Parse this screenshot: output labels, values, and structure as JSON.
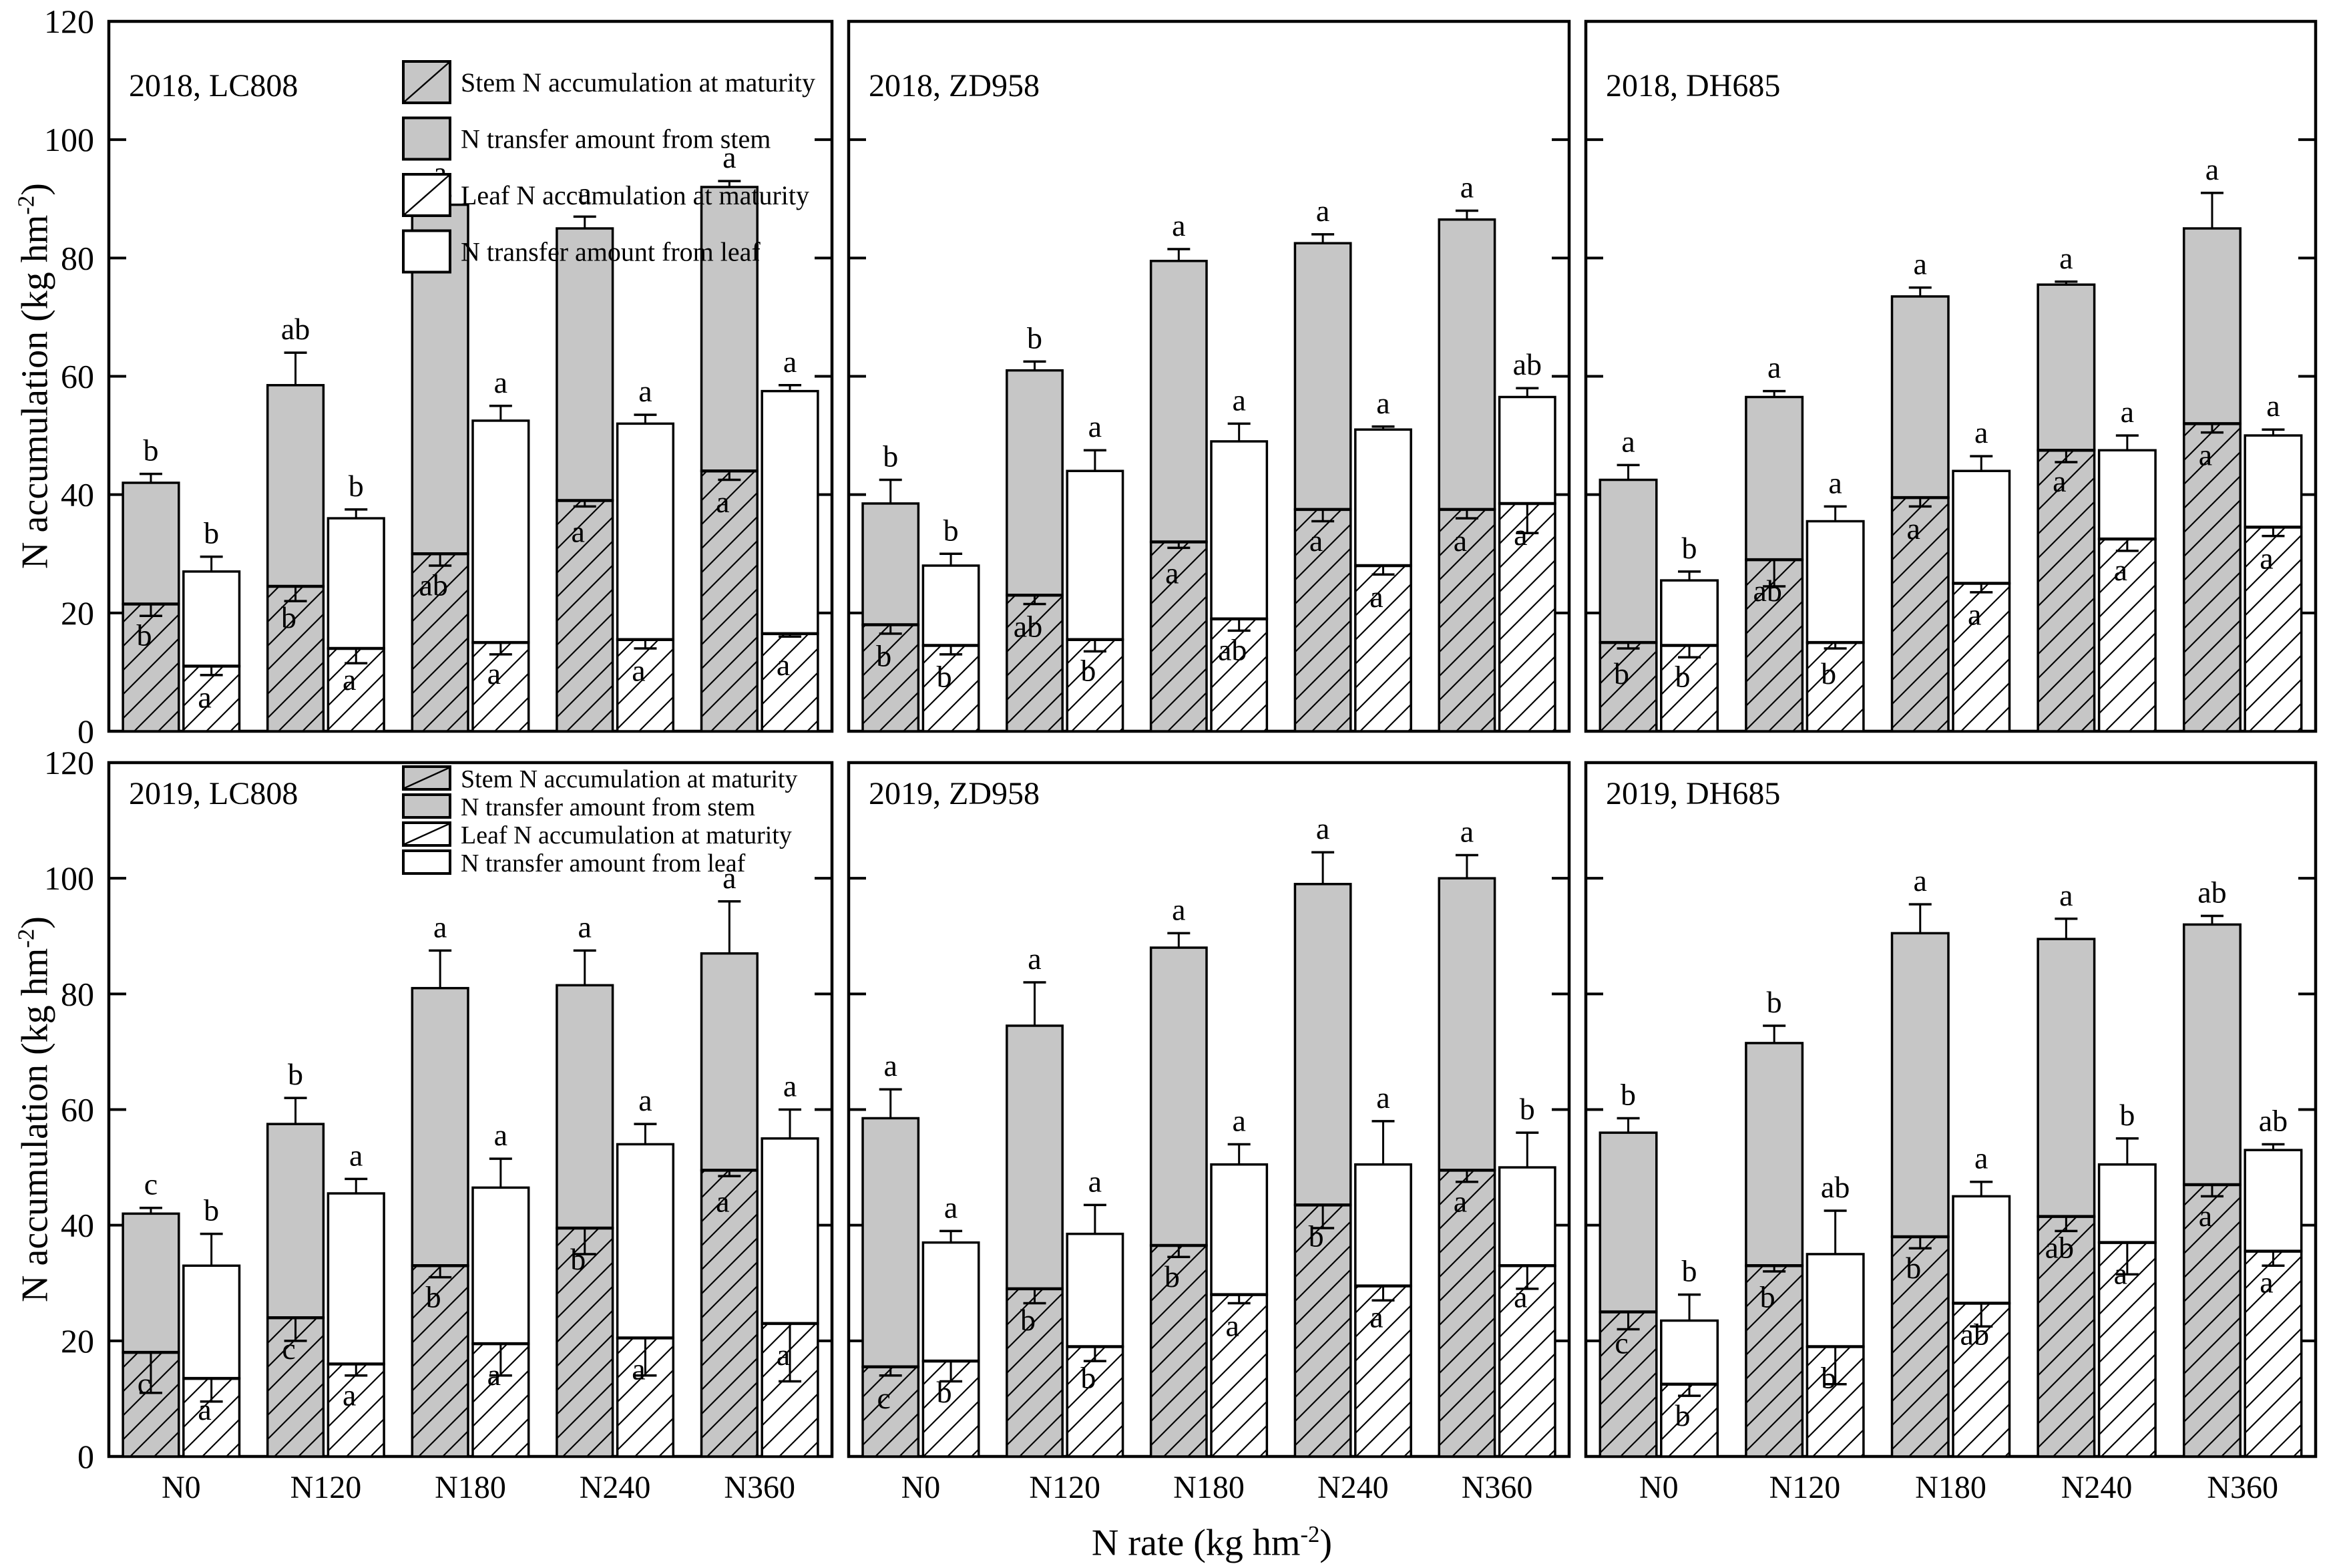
{
  "figure": {
    "x_axis_title": {
      "pre": "N rate (kg hm",
      "sup": "-2",
      "post": ")"
    },
    "y_axis_title": {
      "pre": "N accumulation (kg hm",
      "sup": "-2",
      "post": ")"
    }
  },
  "legend": [
    {
      "label": "Stem N accumulation at maturity",
      "fill": "gray",
      "hatched": true
    },
    {
      "label": "N transfer amount from stem",
      "fill": "gray",
      "hatched": false
    },
    {
      "label": "Leaf N accumulation at maturity",
      "fill": "white",
      "hatched": true
    },
    {
      "label": "N transfer amount from leaf",
      "fill": "white",
      "hatched": false
    }
  ],
  "chart_data": {
    "type": "bar",
    "stacked": true,
    "ylim": [
      0,
      120
    ],
    "yticks": [
      0,
      20,
      40,
      60,
      80,
      100,
      120
    ],
    "categories": [
      "N0",
      "N120",
      "N180",
      "N240",
      "N360"
    ],
    "colors": {
      "bar_gray": "#c6c6c6",
      "bar_white": "#ffffff",
      "outline": "#000000"
    },
    "layout_hints": {
      "grid": false,
      "panel_grid": "2 rows x 3 cols",
      "legend_position": "inside top of left panels",
      "error_bars": "up from segment total, down from maturity boundary"
    },
    "panels": [
      {
        "label": "2018, LC808",
        "show_legend": true,
        "groups": [
          {
            "rate": "N0",
            "stem": {
              "maturity": 21.5,
              "total": 42,
              "err_total": 1.5,
              "err_maturity": 2,
              "letter_total": "b",
              "letter_maturity": "b"
            },
            "leaf": {
              "maturity": 11,
              "total": 27,
              "err_total": 2.5,
              "err_maturity": 1.5,
              "letter_total": "b",
              "letter_maturity": "a"
            }
          },
          {
            "rate": "N120",
            "stem": {
              "maturity": 24.5,
              "total": 58.5,
              "err_total": 5.5,
              "err_maturity": 2.5,
              "letter_total": "ab",
              "letter_maturity": "b"
            },
            "leaf": {
              "maturity": 14,
              "total": 36,
              "err_total": 1.5,
              "err_maturity": 2.5,
              "letter_total": "b",
              "letter_maturity": "a"
            }
          },
          {
            "rate": "N180",
            "stem": {
              "maturity": 30,
              "total": 89,
              "err_total": 1.5,
              "err_maturity": 2,
              "letter_total": "a",
              "letter_maturity": "ab"
            },
            "leaf": {
              "maturity": 15,
              "total": 52.5,
              "err_total": 2.5,
              "err_maturity": 2,
              "letter_total": "a",
              "letter_maturity": "a"
            }
          },
          {
            "rate": "N240",
            "stem": {
              "maturity": 39,
              "total": 85,
              "err_total": 2,
              "err_maturity": 1,
              "letter_total": "a",
              "letter_maturity": "a"
            },
            "leaf": {
              "maturity": 15.5,
              "total": 52,
              "err_total": 1.5,
              "err_maturity": 1.5,
              "letter_total": "a",
              "letter_maturity": "a"
            }
          },
          {
            "rate": "N360",
            "stem": {
              "maturity": 44,
              "total": 92,
              "err_total": 1,
              "err_maturity": 1.5,
              "letter_total": "a",
              "letter_maturity": "a"
            },
            "leaf": {
              "maturity": 16.5,
              "total": 57.5,
              "err_total": 1,
              "err_maturity": 0.5,
              "letter_total": "a",
              "letter_maturity": "a"
            }
          }
        ]
      },
      {
        "label": "2018, ZD958",
        "show_legend": false,
        "groups": [
          {
            "rate": "N0",
            "stem": {
              "maturity": 18,
              "total": 38.5,
              "err_total": 4,
              "err_maturity": 1.5,
              "letter_total": "b",
              "letter_maturity": "b"
            },
            "leaf": {
              "maturity": 14.5,
              "total": 28,
              "err_total": 2,
              "err_maturity": 1.5,
              "letter_total": "b",
              "letter_maturity": "b"
            }
          },
          {
            "rate": "N120",
            "stem": {
              "maturity": 23,
              "total": 61,
              "err_total": 1.5,
              "err_maturity": 1.5,
              "letter_total": "b",
              "letter_maturity": "ab"
            },
            "leaf": {
              "maturity": 15.5,
              "total": 44,
              "err_total": 3.5,
              "err_maturity": 2,
              "letter_total": "a",
              "letter_maturity": "b"
            }
          },
          {
            "rate": "N180",
            "stem": {
              "maturity": 32,
              "total": 79.5,
              "err_total": 2,
              "err_maturity": 1,
              "letter_total": "a",
              "letter_maturity": "a"
            },
            "leaf": {
              "maturity": 19,
              "total": 49,
              "err_total": 3,
              "err_maturity": 2,
              "letter_total": "a",
              "letter_maturity": "ab"
            }
          },
          {
            "rate": "N240",
            "stem": {
              "maturity": 37.5,
              "total": 82.5,
              "err_total": 1.5,
              "err_maturity": 2,
              "letter_total": "a",
              "letter_maturity": "a"
            },
            "leaf": {
              "maturity": 28,
              "total": 51,
              "err_total": 0.5,
              "err_maturity": 1.5,
              "letter_total": "a",
              "letter_maturity": "a"
            }
          },
          {
            "rate": "N360",
            "stem": {
              "maturity": 37.5,
              "total": 86.5,
              "err_total": 1.5,
              "err_maturity": 1.5,
              "letter_total": "a",
              "letter_maturity": "a"
            },
            "leaf": {
              "maturity": 38.5,
              "total": 56.5,
              "err_total": 1.5,
              "err_maturity": 5,
              "letter_total": "ab",
              "letter_maturity": "a"
            }
          }
        ]
      },
      {
        "label": "2018, DH685",
        "show_legend": false,
        "groups": [
          {
            "rate": "N0",
            "stem": {
              "maturity": 15,
              "total": 42.5,
              "err_total": 2.5,
              "err_maturity": 1,
              "letter_total": "a",
              "letter_maturity": "b"
            },
            "leaf": {
              "maturity": 14.5,
              "total": 25.5,
              "err_total": 1.5,
              "err_maturity": 2,
              "letter_total": "b",
              "letter_maturity": "b"
            }
          },
          {
            "rate": "N120",
            "stem": {
              "maturity": 29,
              "total": 56.5,
              "err_total": 1,
              "err_maturity": 4.5,
              "letter_total": "a",
              "letter_maturity": "ab"
            },
            "leaf": {
              "maturity": 15,
              "total": 35.5,
              "err_total": 2.5,
              "err_maturity": 1,
              "letter_total": "a",
              "letter_maturity": "b"
            }
          },
          {
            "rate": "N180",
            "stem": {
              "maturity": 39.5,
              "total": 73.5,
              "err_total": 1.5,
              "err_maturity": 1.5,
              "letter_total": "a",
              "letter_maturity": "a"
            },
            "leaf": {
              "maturity": 25,
              "total": 44,
              "err_total": 2.5,
              "err_maturity": 1.5,
              "letter_total": "a",
              "letter_maturity": "a"
            }
          },
          {
            "rate": "N240",
            "stem": {
              "maturity": 47.5,
              "total": 75.5,
              "err_total": 0.5,
              "err_maturity": 2,
              "letter_total": "a",
              "letter_maturity": "a"
            },
            "leaf": {
              "maturity": 32.5,
              "total": 47.5,
              "err_total": 2.5,
              "err_maturity": 2,
              "letter_total": "a",
              "letter_maturity": "a"
            }
          },
          {
            "rate": "N360",
            "stem": {
              "maturity": 52,
              "total": 85,
              "err_total": 6,
              "err_maturity": 1.5,
              "letter_total": "a",
              "letter_maturity": "a"
            },
            "leaf": {
              "maturity": 34.5,
              "total": 50,
              "err_total": 1,
              "err_maturity": 1.5,
              "letter_total": "a",
              "letter_maturity": "a"
            }
          }
        ]
      },
      {
        "label": "2019, LC808",
        "show_legend": true,
        "groups": [
          {
            "rate": "N0",
            "stem": {
              "maturity": 18,
              "total": 42,
              "err_total": 1,
              "err_maturity": 7,
              "letter_total": "c",
              "letter_maturity": "c"
            },
            "leaf": {
              "maturity": 13.5,
              "total": 33,
              "err_total": 5.5,
              "err_maturity": 4,
              "letter_total": "b",
              "letter_maturity": "a"
            }
          },
          {
            "rate": "N120",
            "stem": {
              "maturity": 24,
              "total": 57.5,
              "err_total": 4.5,
              "err_maturity": 4,
              "letter_total": "b",
              "letter_maturity": "c"
            },
            "leaf": {
              "maturity": 16,
              "total": 45.5,
              "err_total": 2.5,
              "err_maturity": 2,
              "letter_total": "a",
              "letter_maturity": "a"
            }
          },
          {
            "rate": "N180",
            "stem": {
              "maturity": 33,
              "total": 81,
              "err_total": 6.5,
              "err_maturity": 2,
              "letter_total": "a",
              "letter_maturity": "b"
            },
            "leaf": {
              "maturity": 19.5,
              "total": 46.5,
              "err_total": 5,
              "err_maturity": 5.5,
              "letter_total": "a",
              "letter_maturity": "a"
            }
          },
          {
            "rate": "N240",
            "stem": {
              "maturity": 39.5,
              "total": 81.5,
              "err_total": 6,
              "err_maturity": 4.5,
              "letter_total": "a",
              "letter_maturity": "b"
            },
            "leaf": {
              "maturity": 20.5,
              "total": 54,
              "err_total": 3.5,
              "err_maturity": 6.5,
              "letter_total": "a",
              "letter_maturity": "a"
            }
          },
          {
            "rate": "N360",
            "stem": {
              "maturity": 49.5,
              "total": 87,
              "err_total": 9,
              "err_maturity": 1,
              "letter_total": "a",
              "letter_maturity": "a"
            },
            "leaf": {
              "maturity": 23,
              "total": 55,
              "err_total": 5,
              "err_maturity": 10,
              "letter_total": "a",
              "letter_maturity": "a"
            }
          }
        ]
      },
      {
        "label": "2019, ZD958",
        "show_legend": false,
        "groups": [
          {
            "rate": "N0",
            "stem": {
              "maturity": 15.5,
              "total": 58.5,
              "err_total": 5,
              "err_maturity": 1.5,
              "letter_total": "a",
              "letter_maturity": "c"
            },
            "leaf": {
              "maturity": 16.5,
              "total": 37,
              "err_total": 2,
              "err_maturity": 3.5,
              "letter_total": "a",
              "letter_maturity": "b"
            }
          },
          {
            "rate": "N120",
            "stem": {
              "maturity": 29,
              "total": 74.5,
              "err_total": 7.5,
              "err_maturity": 2.5,
              "letter_total": "a",
              "letter_maturity": "b"
            },
            "leaf": {
              "maturity": 19,
              "total": 38.5,
              "err_total": 5,
              "err_maturity": 2.5,
              "letter_total": "a",
              "letter_maturity": "b"
            }
          },
          {
            "rate": "N180",
            "stem": {
              "maturity": 36.5,
              "total": 88,
              "err_total": 2.5,
              "err_maturity": 2,
              "letter_total": "a",
              "letter_maturity": "b"
            },
            "leaf": {
              "maturity": 28,
              "total": 50.5,
              "err_total": 3.5,
              "err_maturity": 1.5,
              "letter_total": "a",
              "letter_maturity": "a"
            }
          },
          {
            "rate": "N240",
            "stem": {
              "maturity": 43.5,
              "total": 99,
              "err_total": 5.5,
              "err_maturity": 4,
              "letter_total": "a",
              "letter_maturity": "b"
            },
            "leaf": {
              "maturity": 29.5,
              "total": 50.5,
              "err_total": 7.5,
              "err_maturity": 2.5,
              "letter_total": "a",
              "letter_maturity": "a"
            }
          },
          {
            "rate": "N360",
            "stem": {
              "maturity": 49.5,
              "total": 100,
              "err_total": 4,
              "err_maturity": 2,
              "letter_total": "a",
              "letter_maturity": "a"
            },
            "leaf": {
              "maturity": 33,
              "total": 50,
              "err_total": 6,
              "err_maturity": 4,
              "letter_total": "b",
              "letter_maturity": "a"
            }
          }
        ]
      },
      {
        "label": "2019, DH685",
        "show_legend": false,
        "groups": [
          {
            "rate": "N0",
            "stem": {
              "maturity": 25,
              "total": 56,
              "err_total": 2.5,
              "err_maturity": 3,
              "letter_total": "b",
              "letter_maturity": "c"
            },
            "leaf": {
              "maturity": 12.5,
              "total": 23.5,
              "err_total": 4.5,
              "err_maturity": 2,
              "letter_total": "b",
              "letter_maturity": "b"
            }
          },
          {
            "rate": "N120",
            "stem": {
              "maturity": 33,
              "total": 71.5,
              "err_total": 3,
              "err_maturity": 1,
              "letter_total": "b",
              "letter_maturity": "b"
            },
            "leaf": {
              "maturity": 19,
              "total": 35,
              "err_total": 7.5,
              "err_maturity": 6.5,
              "letter_total": "ab",
              "letter_maturity": "b"
            }
          },
          {
            "rate": "N180",
            "stem": {
              "maturity": 38,
              "total": 90.5,
              "err_total": 5,
              "err_maturity": 2,
              "letter_total": "a",
              "letter_maturity": "b"
            },
            "leaf": {
              "maturity": 26.5,
              "total": 45,
              "err_total": 2.5,
              "err_maturity": 4,
              "letter_total": "a",
              "letter_maturity": "ab"
            }
          },
          {
            "rate": "N240",
            "stem": {
              "maturity": 41.5,
              "total": 89.5,
              "err_total": 3.5,
              "err_maturity": 2.5,
              "letter_total": "a",
              "letter_maturity": "ab"
            },
            "leaf": {
              "maturity": 37,
              "total": 50.5,
              "err_total": 4.5,
              "err_maturity": 5.5,
              "letter_total": "b",
              "letter_maturity": "a"
            }
          },
          {
            "rate": "N360",
            "stem": {
              "maturity": 47,
              "total": 92,
              "err_total": 1.5,
              "err_maturity": 2,
              "letter_total": "ab",
              "letter_maturity": "a"
            },
            "leaf": {
              "maturity": 35.5,
              "total": 53,
              "err_total": 1,
              "err_maturity": 2.5,
              "letter_total": "ab",
              "letter_maturity": "a"
            }
          }
        ]
      }
    ]
  }
}
